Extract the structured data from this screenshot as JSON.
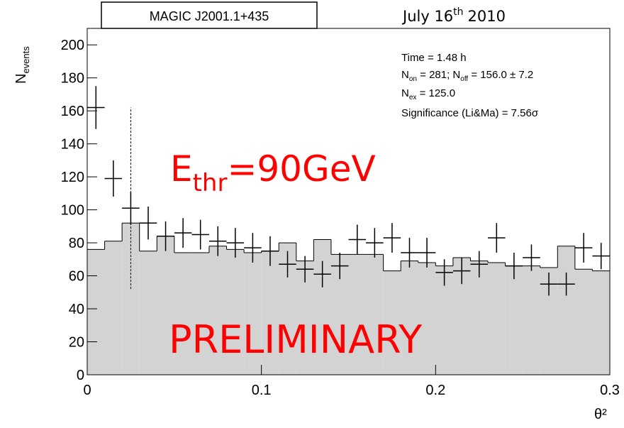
{
  "chart_data": {
    "type": "histogram",
    "source_label": "MAGIC J2001.1+435",
    "date": {
      "main": "July 16",
      "sup": "th",
      "year": "2010"
    },
    "ylabel": {
      "main": "N",
      "sub": "events"
    },
    "xlabel": "θ²",
    "stats": {
      "time": "Time = 1.48 h",
      "counts": [
        {
          "main": "N",
          "sub": "on"
        },
        {
          "main": " = 281; N",
          "sub": "off"
        },
        {
          "main": " = 156.0 ±  7.2"
        }
      ],
      "excess": [
        {
          "main": "N",
          "sub": "ex"
        },
        {
          "main": " = 125.0"
        }
      ],
      "significance": "Significance (Li&Ma) = 7.56σ"
    },
    "threshold": {
      "main": "E",
      "sub": "thr",
      "rest": "=90GeV"
    },
    "watermark": "PRELIMINARY",
    "bins": [
      0,
      0.01,
      0.02,
      0.03,
      0.04,
      0.05,
      0.06,
      0.07,
      0.08,
      0.09,
      0.1,
      0.11,
      0.12,
      0.13,
      0.14,
      0.15,
      0.16,
      0.17,
      0.18,
      0.19,
      0.2,
      0.21,
      0.22,
      0.23,
      0.24,
      0.25,
      0.26,
      0.27,
      0.28,
      0.29,
      0.3
    ],
    "off_counts": [
      76,
      81,
      92,
      75,
      84,
      74,
      74,
      78,
      76,
      74,
      75,
      80,
      69,
      82,
      73,
      73,
      73,
      63,
      69,
      68,
      66,
      71,
      69,
      68,
      66,
      66,
      65,
      78,
      64,
      63
    ],
    "off_color": "#d3d3d3",
    "on_counts": [
      162,
      119,
      101,
      92,
      84,
      86,
      85,
      81,
      80,
      77,
      75,
      67,
      64,
      61,
      66,
      82,
      80,
      83,
      74,
      74,
      62,
      63,
      67,
      83,
      66,
      71,
      55,
      55,
      77,
      72
    ],
    "on_errors": [
      13,
      11,
      10,
      10,
      9,
      9,
      9,
      9,
      9,
      9,
      9,
      8,
      8,
      8,
      8,
      9,
      9,
      9,
      9,
      9,
      8,
      8,
      8,
      9,
      8,
      8,
      7,
      7,
      9,
      8
    ],
    "cut": {
      "x": 0.025,
      "y": [
        52,
        162
      ]
    },
    "xlim": [
      0,
      0.3
    ],
    "xticks": [
      0,
      0.1,
      0.2,
      0.3
    ],
    "ylim": [
      0,
      210
    ],
    "yticks": [
      0,
      20,
      40,
      60,
      80,
      100,
      120,
      140,
      160,
      180,
      200
    ]
  }
}
